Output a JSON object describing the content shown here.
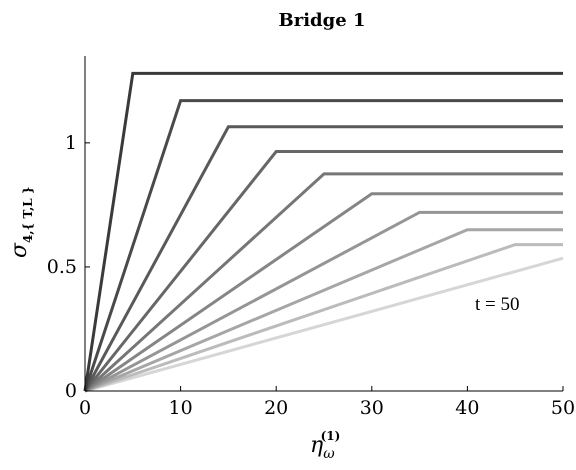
{
  "chart_data": {
    "type": "line",
    "title": "Bridge 1",
    "xlabel": {
      "main": "η",
      "sub": "ω",
      "sup": "(1)"
    },
    "ylabel": {
      "main": "σ",
      "sub": "4,{ T,L }"
    },
    "xlim": [
      0,
      50
    ],
    "ylim": [
      0,
      1.35
    ],
    "xticks": [
      "0",
      "10",
      "20",
      "30",
      "40",
      "50"
    ],
    "yticks": [
      "0",
      "0.5",
      "1"
    ],
    "grid": false,
    "annotation": "t = 50",
    "series": [
      {
        "color": "#3a3a3a",
        "points": [
          [
            0,
            0
          ],
          [
            5,
            1.28
          ],
          [
            50,
            1.28
          ]
        ]
      },
      {
        "color": "#4a4a4a",
        "points": [
          [
            0,
            0
          ],
          [
            10,
            1.17
          ],
          [
            50,
            1.17
          ]
        ]
      },
      {
        "color": "#595959",
        "points": [
          [
            0,
            0
          ],
          [
            15,
            1.065
          ],
          [
            50,
            1.065
          ]
        ]
      },
      {
        "color": "#676767",
        "points": [
          [
            0,
            0
          ],
          [
            20,
            0.965
          ],
          [
            50,
            0.965
          ]
        ]
      },
      {
        "color": "#767676",
        "points": [
          [
            0,
            0
          ],
          [
            25,
            0.875
          ],
          [
            50,
            0.875
          ]
        ]
      },
      {
        "color": "#858585",
        "points": [
          [
            0,
            0
          ],
          [
            30,
            0.795
          ],
          [
            50,
            0.795
          ]
        ]
      },
      {
        "color": "#959595",
        "points": [
          [
            0,
            0
          ],
          [
            35,
            0.72
          ],
          [
            50,
            0.72
          ]
        ]
      },
      {
        "color": "#a6a6a6",
        "points": [
          [
            0,
            0
          ],
          [
            40,
            0.65
          ],
          [
            50,
            0.65
          ]
        ]
      },
      {
        "color": "#bbbbbb",
        "points": [
          [
            0,
            0
          ],
          [
            45,
            0.59
          ],
          [
            50,
            0.59
          ]
        ]
      },
      {
        "color": "#d6d6d6",
        "points": [
          [
            0,
            0
          ],
          [
            50,
            0.535
          ]
        ]
      }
    ]
  }
}
